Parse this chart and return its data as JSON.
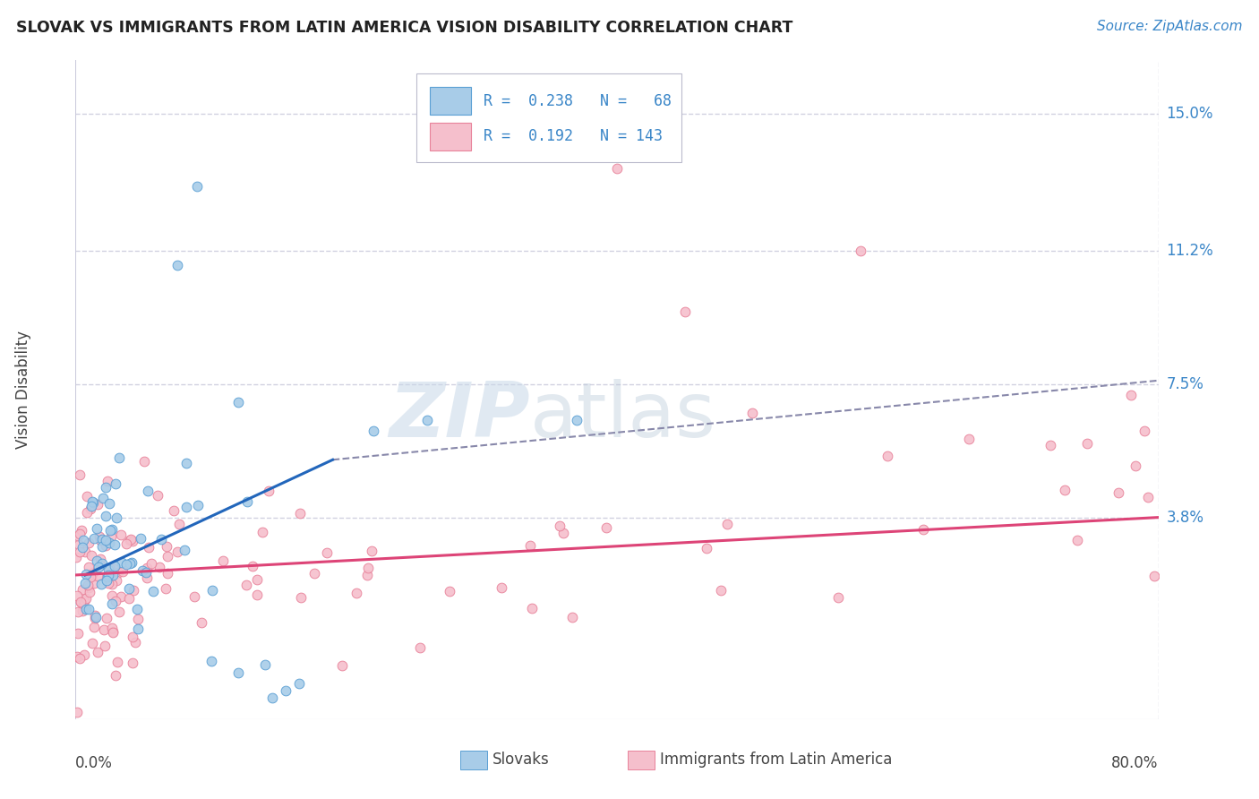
{
  "title": "SLOVAK VS IMMIGRANTS FROM LATIN AMERICA VISION DISABILITY CORRELATION CHART",
  "source": "Source: ZipAtlas.com",
  "ylabel": "Vision Disability",
  "xmin": 0.0,
  "xmax": 0.8,
  "ymin": -0.018,
  "ymax": 0.165,
  "yticks": [
    0.038,
    0.075,
    0.112,
    0.15
  ],
  "ytick_labels": [
    "3.8%",
    "7.5%",
    "11.2%",
    "15.0%"
  ],
  "color_slovak": "#a8cce8",
  "color_latin": "#f5bfcc",
  "color_slovak_edge": "#5a9fd4",
  "color_latin_edge": "#e8829a",
  "color_slovak_line": "#2266bb",
  "color_latin_line": "#dd4477",
  "color_dash": "#8888aa",
  "background_color": "#ffffff",
  "grid_color": "#ccccdd",
  "slovak_line_x": [
    0.007,
    0.19
  ],
  "slovak_line_y": [
    0.022,
    0.054
  ],
  "dash_line_x": [
    0.19,
    0.8
  ],
  "dash_line_y": [
    0.054,
    0.076
  ],
  "latin_line_x": [
    0.0,
    0.8
  ],
  "latin_line_y": [
    0.022,
    0.038
  ]
}
